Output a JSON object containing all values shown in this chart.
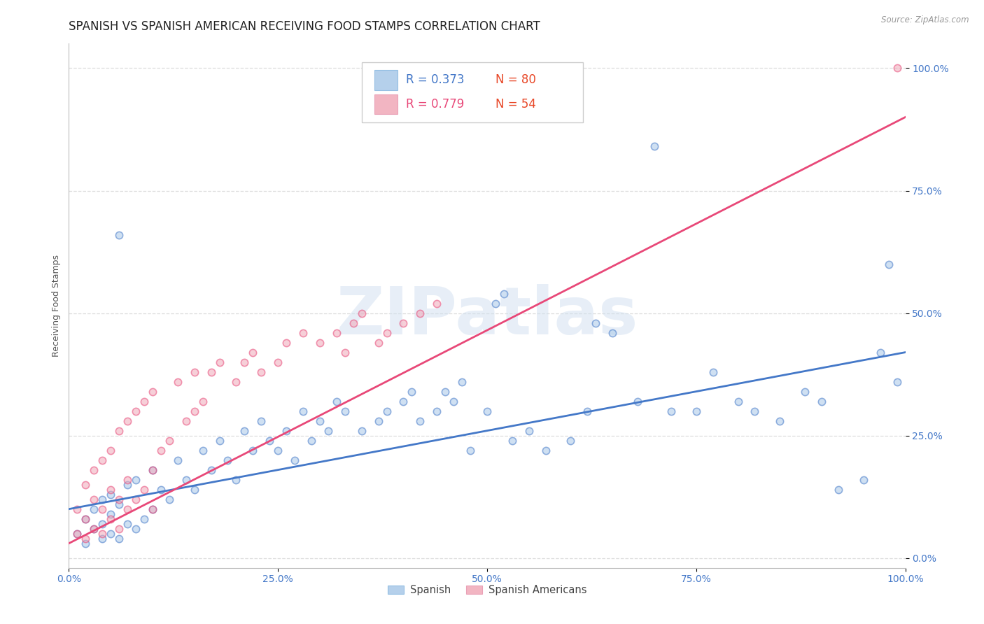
{
  "title": "SPANISH VS SPANISH AMERICAN RECEIVING FOOD STAMPS CORRELATION CHART",
  "source": "Source: ZipAtlas.com",
  "ylabel": "Receiving Food Stamps",
  "watermark": "ZIPatlas",
  "blue_R": 0.373,
  "blue_N": 80,
  "pink_R": 0.779,
  "pink_N": 54,
  "blue_color": "#a8c8e8",
  "pink_color": "#f0a8b8",
  "blue_line_color": "#4478c8",
  "pink_line_color": "#e84878",
  "legend_label_blue": "Spanish",
  "legend_label_pink": "Spanish Americans",
  "xlim": [
    0.0,
    1.0
  ],
  "ylim": [
    -0.02,
    1.05
  ],
  "ytick_labels": [
    "0.0%",
    "25.0%",
    "50.0%",
    "75.0%",
    "100.0%"
  ],
  "ytick_values": [
    0.0,
    0.25,
    0.5,
    0.75,
    1.0
  ],
  "xtick_labels": [
    "0.0%",
    "25.0%",
    "50.0%",
    "75.0%",
    "100.0%"
  ],
  "xtick_values": [
    0.0,
    0.25,
    0.5,
    0.75,
    1.0
  ],
  "blue_x": [
    0.01,
    0.02,
    0.02,
    0.03,
    0.03,
    0.04,
    0.04,
    0.04,
    0.05,
    0.05,
    0.05,
    0.06,
    0.06,
    0.07,
    0.07,
    0.08,
    0.08,
    0.09,
    0.1,
    0.1,
    0.11,
    0.12,
    0.13,
    0.14,
    0.15,
    0.16,
    0.17,
    0.18,
    0.19,
    0.2,
    0.21,
    0.22,
    0.23,
    0.24,
    0.25,
    0.26,
    0.27,
    0.28,
    0.29,
    0.3,
    0.31,
    0.32,
    0.33,
    0.35,
    0.37,
    0.38,
    0.4,
    0.41,
    0.42,
    0.44,
    0.45,
    0.46,
    0.47,
    0.48,
    0.5,
    0.51,
    0.52,
    0.53,
    0.55,
    0.57,
    0.6,
    0.62,
    0.63,
    0.65,
    0.68,
    0.7,
    0.72,
    0.75,
    0.77,
    0.8,
    0.82,
    0.85,
    0.88,
    0.9,
    0.92,
    0.95,
    0.97,
    0.98,
    0.99,
    0.06
  ],
  "blue_y": [
    0.05,
    0.03,
    0.08,
    0.06,
    0.1,
    0.04,
    0.07,
    0.12,
    0.05,
    0.09,
    0.13,
    0.04,
    0.11,
    0.07,
    0.15,
    0.06,
    0.16,
    0.08,
    0.1,
    0.18,
    0.14,
    0.12,
    0.2,
    0.16,
    0.14,
    0.22,
    0.18,
    0.24,
    0.2,
    0.16,
    0.26,
    0.22,
    0.28,
    0.24,
    0.22,
    0.26,
    0.2,
    0.3,
    0.24,
    0.28,
    0.26,
    0.32,
    0.3,
    0.26,
    0.28,
    0.3,
    0.32,
    0.34,
    0.28,
    0.3,
    0.34,
    0.32,
    0.36,
    0.22,
    0.3,
    0.52,
    0.54,
    0.24,
    0.26,
    0.22,
    0.24,
    0.3,
    0.48,
    0.46,
    0.32,
    0.84,
    0.3,
    0.3,
    0.38,
    0.32,
    0.3,
    0.28,
    0.34,
    0.32,
    0.14,
    0.16,
    0.42,
    0.6,
    0.36,
    0.66
  ],
  "pink_x": [
    0.01,
    0.01,
    0.02,
    0.02,
    0.02,
    0.03,
    0.03,
    0.03,
    0.04,
    0.04,
    0.04,
    0.05,
    0.05,
    0.05,
    0.06,
    0.06,
    0.06,
    0.07,
    0.07,
    0.07,
    0.08,
    0.08,
    0.09,
    0.09,
    0.1,
    0.1,
    0.1,
    0.11,
    0.12,
    0.13,
    0.14,
    0.15,
    0.15,
    0.16,
    0.17,
    0.18,
    0.2,
    0.21,
    0.22,
    0.23,
    0.25,
    0.26,
    0.28,
    0.3,
    0.32,
    0.33,
    0.34,
    0.35,
    0.37,
    0.38,
    0.4,
    0.42,
    0.44,
    0.99
  ],
  "pink_y": [
    0.05,
    0.1,
    0.04,
    0.08,
    0.15,
    0.06,
    0.12,
    0.18,
    0.05,
    0.1,
    0.2,
    0.08,
    0.14,
    0.22,
    0.06,
    0.12,
    0.26,
    0.1,
    0.16,
    0.28,
    0.12,
    0.3,
    0.14,
    0.32,
    0.1,
    0.18,
    0.34,
    0.22,
    0.24,
    0.36,
    0.28,
    0.3,
    0.38,
    0.32,
    0.38,
    0.4,
    0.36,
    0.4,
    0.42,
    0.38,
    0.4,
    0.44,
    0.46,
    0.44,
    0.46,
    0.42,
    0.48,
    0.5,
    0.44,
    0.46,
    0.48,
    0.5,
    0.52,
    1.0
  ],
  "blue_line_x": [
    0.0,
    1.0
  ],
  "blue_line_y": [
    0.1,
    0.42
  ],
  "pink_line_x": [
    0.0,
    1.0
  ],
  "pink_line_y": [
    0.03,
    0.9
  ],
  "background_color": "#ffffff",
  "grid_color": "#dddddd",
  "title_fontsize": 12,
  "axis_label_fontsize": 9,
  "tick_fontsize": 10,
  "marker_size": 55,
  "marker_alpha": 0.55,
  "line_width": 2.0
}
